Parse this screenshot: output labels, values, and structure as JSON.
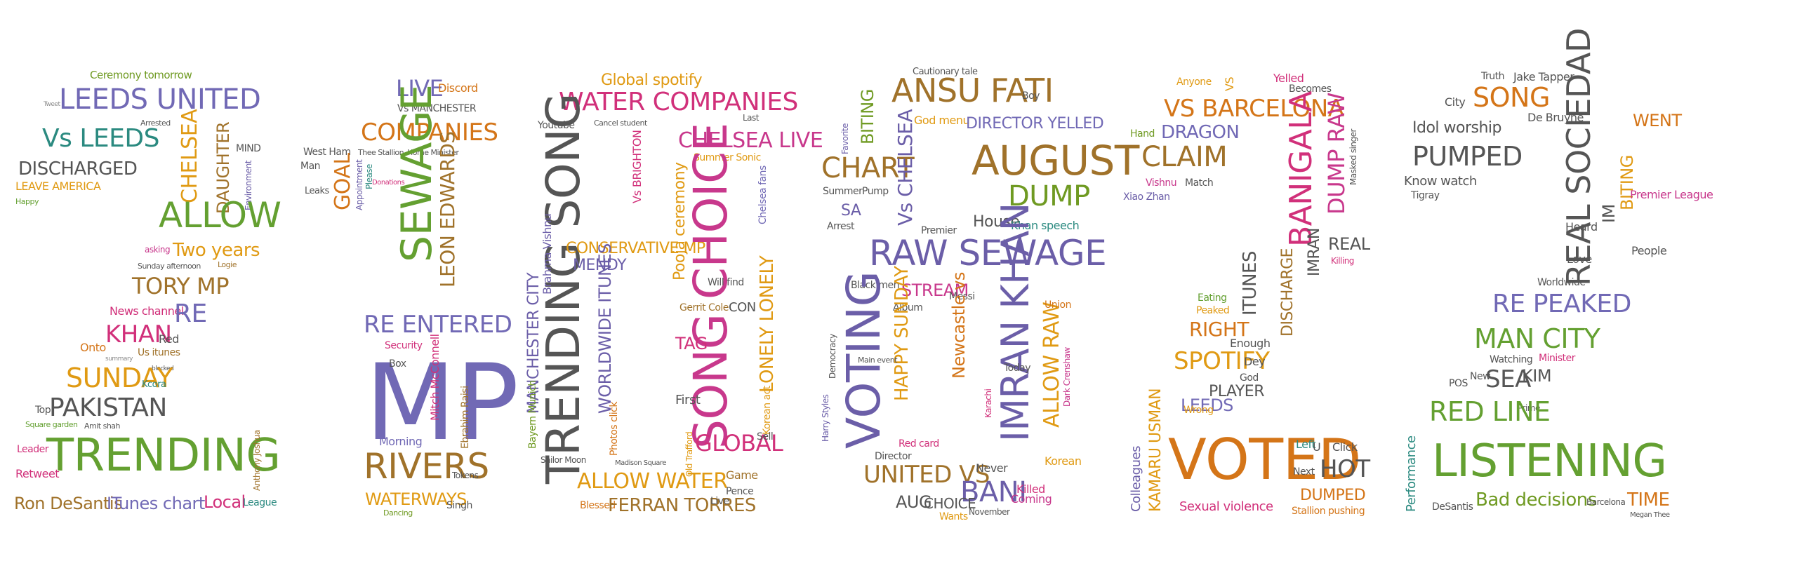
{
  "palette": {
    "green": "#64a031",
    "olive": "#6f9a22",
    "purple": "#6b5ea8",
    "blue": "#7169b5",
    "pink": "#d1307a",
    "magenta": "#c8388c",
    "orange": "#d47518",
    "amber": "#e09a13",
    "gold": "#b9862b",
    "brown": "#a0722a",
    "teal": "#2b8a80",
    "gray": "#555555",
    "light": "#8a8a8a"
  },
  "words": {
    "d2": {
      "ceremony_tomorrow": "Ceremony tomorrow",
      "leeds_united": "LEEDS UNITED",
      "vs_leeds": "Vs LEEDS",
      "discharged": "DISCHARGED",
      "leave_america": "LEAVE AMERICA",
      "happy": "Happy",
      "chelsea": "CHELSEA",
      "daughter": "DAUGHTER",
      "mind": "MIND",
      "allow": "ALLOW",
      "two_years": "Two years",
      "asking": "asking",
      "sunday_afternoon": "Sunday afternoon",
      "tory_mp": "TORY MP",
      "news_channel": "News channel",
      "re": "RE",
      "khan": "KHAN",
      "red": "Red",
      "us_itunes": "Us itunes",
      "onto": "Onto",
      "sunday": "SUNDAY",
      "pakistan": "PAKISTAN",
      "top": "Top",
      "square_garden": "Square garden",
      "amit_shah": "Amit shah",
      "leader": "Leader",
      "trending": "TRENDING",
      "retweet": "Retweet",
      "ron_desantis": "Ron DeSantis",
      "itunes_chart": "ITunes chart",
      "local": "Local",
      "league": "League",
      "anthony_joshua": "Anthony Joshua",
      "environment": "Environment",
      "logie": "Logie",
      "tweet": "Tweet",
      "arrested": "Arrested",
      "kcora": "Kcora",
      "blocked": "blocked",
      "summary": "summary"
    },
    "d1": {
      "live": "LIVE",
      "discord": "Discord",
      "vs_manchester": "Vs MANCHESTER",
      "companies": "COMPANIES",
      "west_ham": "West Ham",
      "thee_stallion": "Thee Stallion",
      "home_minister": "Home Minister",
      "goal": "GOAL",
      "sewage": "SEWAGE",
      "leon_edwards": "LEON EDWARDS",
      "man": "Man",
      "leaks": "Leaks",
      "appointment": "Appointment",
      "please": "Please",
      "donations": "Donations",
      "re_entered": "RE ENTERED",
      "security": "Security",
      "mp": "MP",
      "box": "Box",
      "mitch_mcconnell": "Mitch McConnell",
      "ebrahim_raisi": "Ebrahim Raisi",
      "morning": "Morning",
      "rivers": "RIVERS",
      "waterways": "WATERWAYS",
      "singh": "Singh",
      "dancing": "Dancing",
      "tokens": "Tokens"
    },
    "d0": {
      "global_spotify": "Global spotify",
      "water_companies": "WATER COMPANIES",
      "youtube": "Youtube",
      "cancel_student": "Cancel student",
      "chelsea_live": "CHELSEA LIVE",
      "summer_sonic": "Summer Sonic",
      "trending_song": "TRENDING SONG",
      "vs_brighton": "Vs BRIGHTON",
      "conservative_mp": "CONSERVATIVE MP",
      "mendy": "MENDY",
      "song_choice": "SONG CHOICE",
      "chelsea_fans": "Chelsea fans",
      "pooja_ceremony": "Pooja ceremony",
      "brahma_vishnu": "Brahma Vishnu",
      "manchester_city": "MANCHESTER CITY",
      "worldwide_itunes": "WORLDWIDE ITUNES",
      "lonely_lonely": "LONELY LONELY",
      "gerrit_cole": "Gerrit Cole",
      "con": "CON",
      "will_find": "Will find",
      "tag": "TAG",
      "first": "First",
      "global": "GLOBAL",
      "bayern_munich": "Bayern Munich",
      "photos_click": "Photos click",
      "sailor_moon": "Sailor Moon",
      "allow_water": "ALLOW WATER",
      "ferran_torres": "FERRAN TORRES",
      "blessed": "Blessed",
      "game": "Game",
      "pence": "Pence",
      "sell": "Sell",
      "old_trafford": "Old Trafford",
      "korean_act": "Korean act",
      "madison_square": "Madison Square",
      "live": "Live",
      "last": "Last"
    },
    "d8": {
      "cautionary_tale": "Cautionary tale",
      "ansu_fati": "ANSU FATI",
      "boy": "Boy",
      "god_menu": "God menu",
      "director_yelled": "DIRECTOR YELLED",
      "biting": "BITING",
      "favorite": "Favorite",
      "chart": "CHART",
      "august": "AUGUST",
      "vs_chelsea": "Vs CHELSEA",
      "summer": "Summer",
      "pump": "Pump",
      "dump": "DUMP",
      "house": "House",
      "khan_speech": "Khan speech",
      "sa": "SA",
      "arrest": "Arrest",
      "premier": "Premier",
      "raw_sewage": "RAW SEWAGE",
      "black_men": "Black men",
      "stream": "STREAM",
      "album": "Album",
      "messi": "Messi",
      "voting": "VOTING",
      "happy_sunday": "HAPPY SUNDAY",
      "newcastle_vs": "Newcastle vs",
      "imran_khan": "IMRAN KHAN",
      "allow_raw": "ALLOW RAW",
      "union": "Union",
      "today": "Today",
      "red_card": "Red card",
      "director": "Director",
      "united_vs": "UNITED VS",
      "aug": "AUG",
      "choice": "CHOICE",
      "bani": "BANI",
      "never": "Never",
      "killed": "Killed",
      "coming": "Coming",
      "wants": "Wants",
      "november": "November",
      "korean": "Korean",
      "harry_styles": "Harry Styles",
      "democracy": "Democracy",
      "main_event": "Main event",
      "karachi": "Karachi",
      "dark_crenshaw": "Dark Crenshaw"
    },
    "d2b": {
      "anyone": "Anyone",
      "vs": "VS",
      "yelled": "Yelled",
      "becomes": "Becomes",
      "vs_barcelona": "VS BARCELONA",
      "banigala": "BANIGALA",
      "dump_raw": "DUMP RAW",
      "hand": "Hand",
      "dragon": "DRAGON",
      "claim": "CLAIM",
      "vishnu": "Vishnu",
      "match": "Match",
      "xiao_zhan": "Xiao Zhan",
      "imran": "IMRAN",
      "discharge": "DISCHARGE",
      "itunes": "ITUNES",
      "real": "REAL",
      "killing": "Killing",
      "eating": "Eating",
      "peaked": "Peaked",
      "right": "RIGHT",
      "enough": "Enough",
      "spotify": "SPOTIFY",
      "player": "PLAYER",
      "leeds": "LEEDS",
      "wrong": "Wrong",
      "kamaru_usman": "KAMARU USMAN",
      "colleagues": "Colleagues",
      "voted": "VOTED",
      "sexual_violence": "Sexual violence",
      "left": "Left",
      "u": "U",
      "click": "Click",
      "next": "Next",
      "hot": "HOT",
      "dumped": "DUMPED",
      "stallion_pushing": "Stallion pushing",
      "god": "God",
      "dey": "Dey",
      "masked_singer": "Masked singer"
    },
    "d2c": {
      "truth": "Truth",
      "jake_tapper": "Jake Tapper",
      "song": "SONG",
      "city": "City",
      "de_bruyne": "De Bruyne",
      "idol_worship": "Idol worship",
      "real_sociedad": "REAL SOCIEDAD",
      "went": "WENT",
      "pumped": "PUMPED",
      "know_watch": "Know watch",
      "biting": "BITING",
      "tigray": "Tigray",
      "premier_league": "Premier League",
      "heard": "Heard",
      "im": "IM",
      "people": "People",
      "love": "Love",
      "worldwide": "Worldwide",
      "re_peaked": "RE PEAKED",
      "man_city": "MAN CITY",
      "watching": "Watching",
      "minister": "Minister",
      "sea": "SEA",
      "kim": "KIM",
      "red_line": "RED LINE",
      "new": "New",
      "pos": "POS",
      "listening": "LISTENING",
      "performance": "Performance",
      "bad_decisions": "Bad decisions",
      "time": "TIME",
      "desantis": "DeSantis",
      "barcelona": "Barcelona",
      "megan_thee": "Megan Thee",
      "prime": "Prime"
    }
  }
}
